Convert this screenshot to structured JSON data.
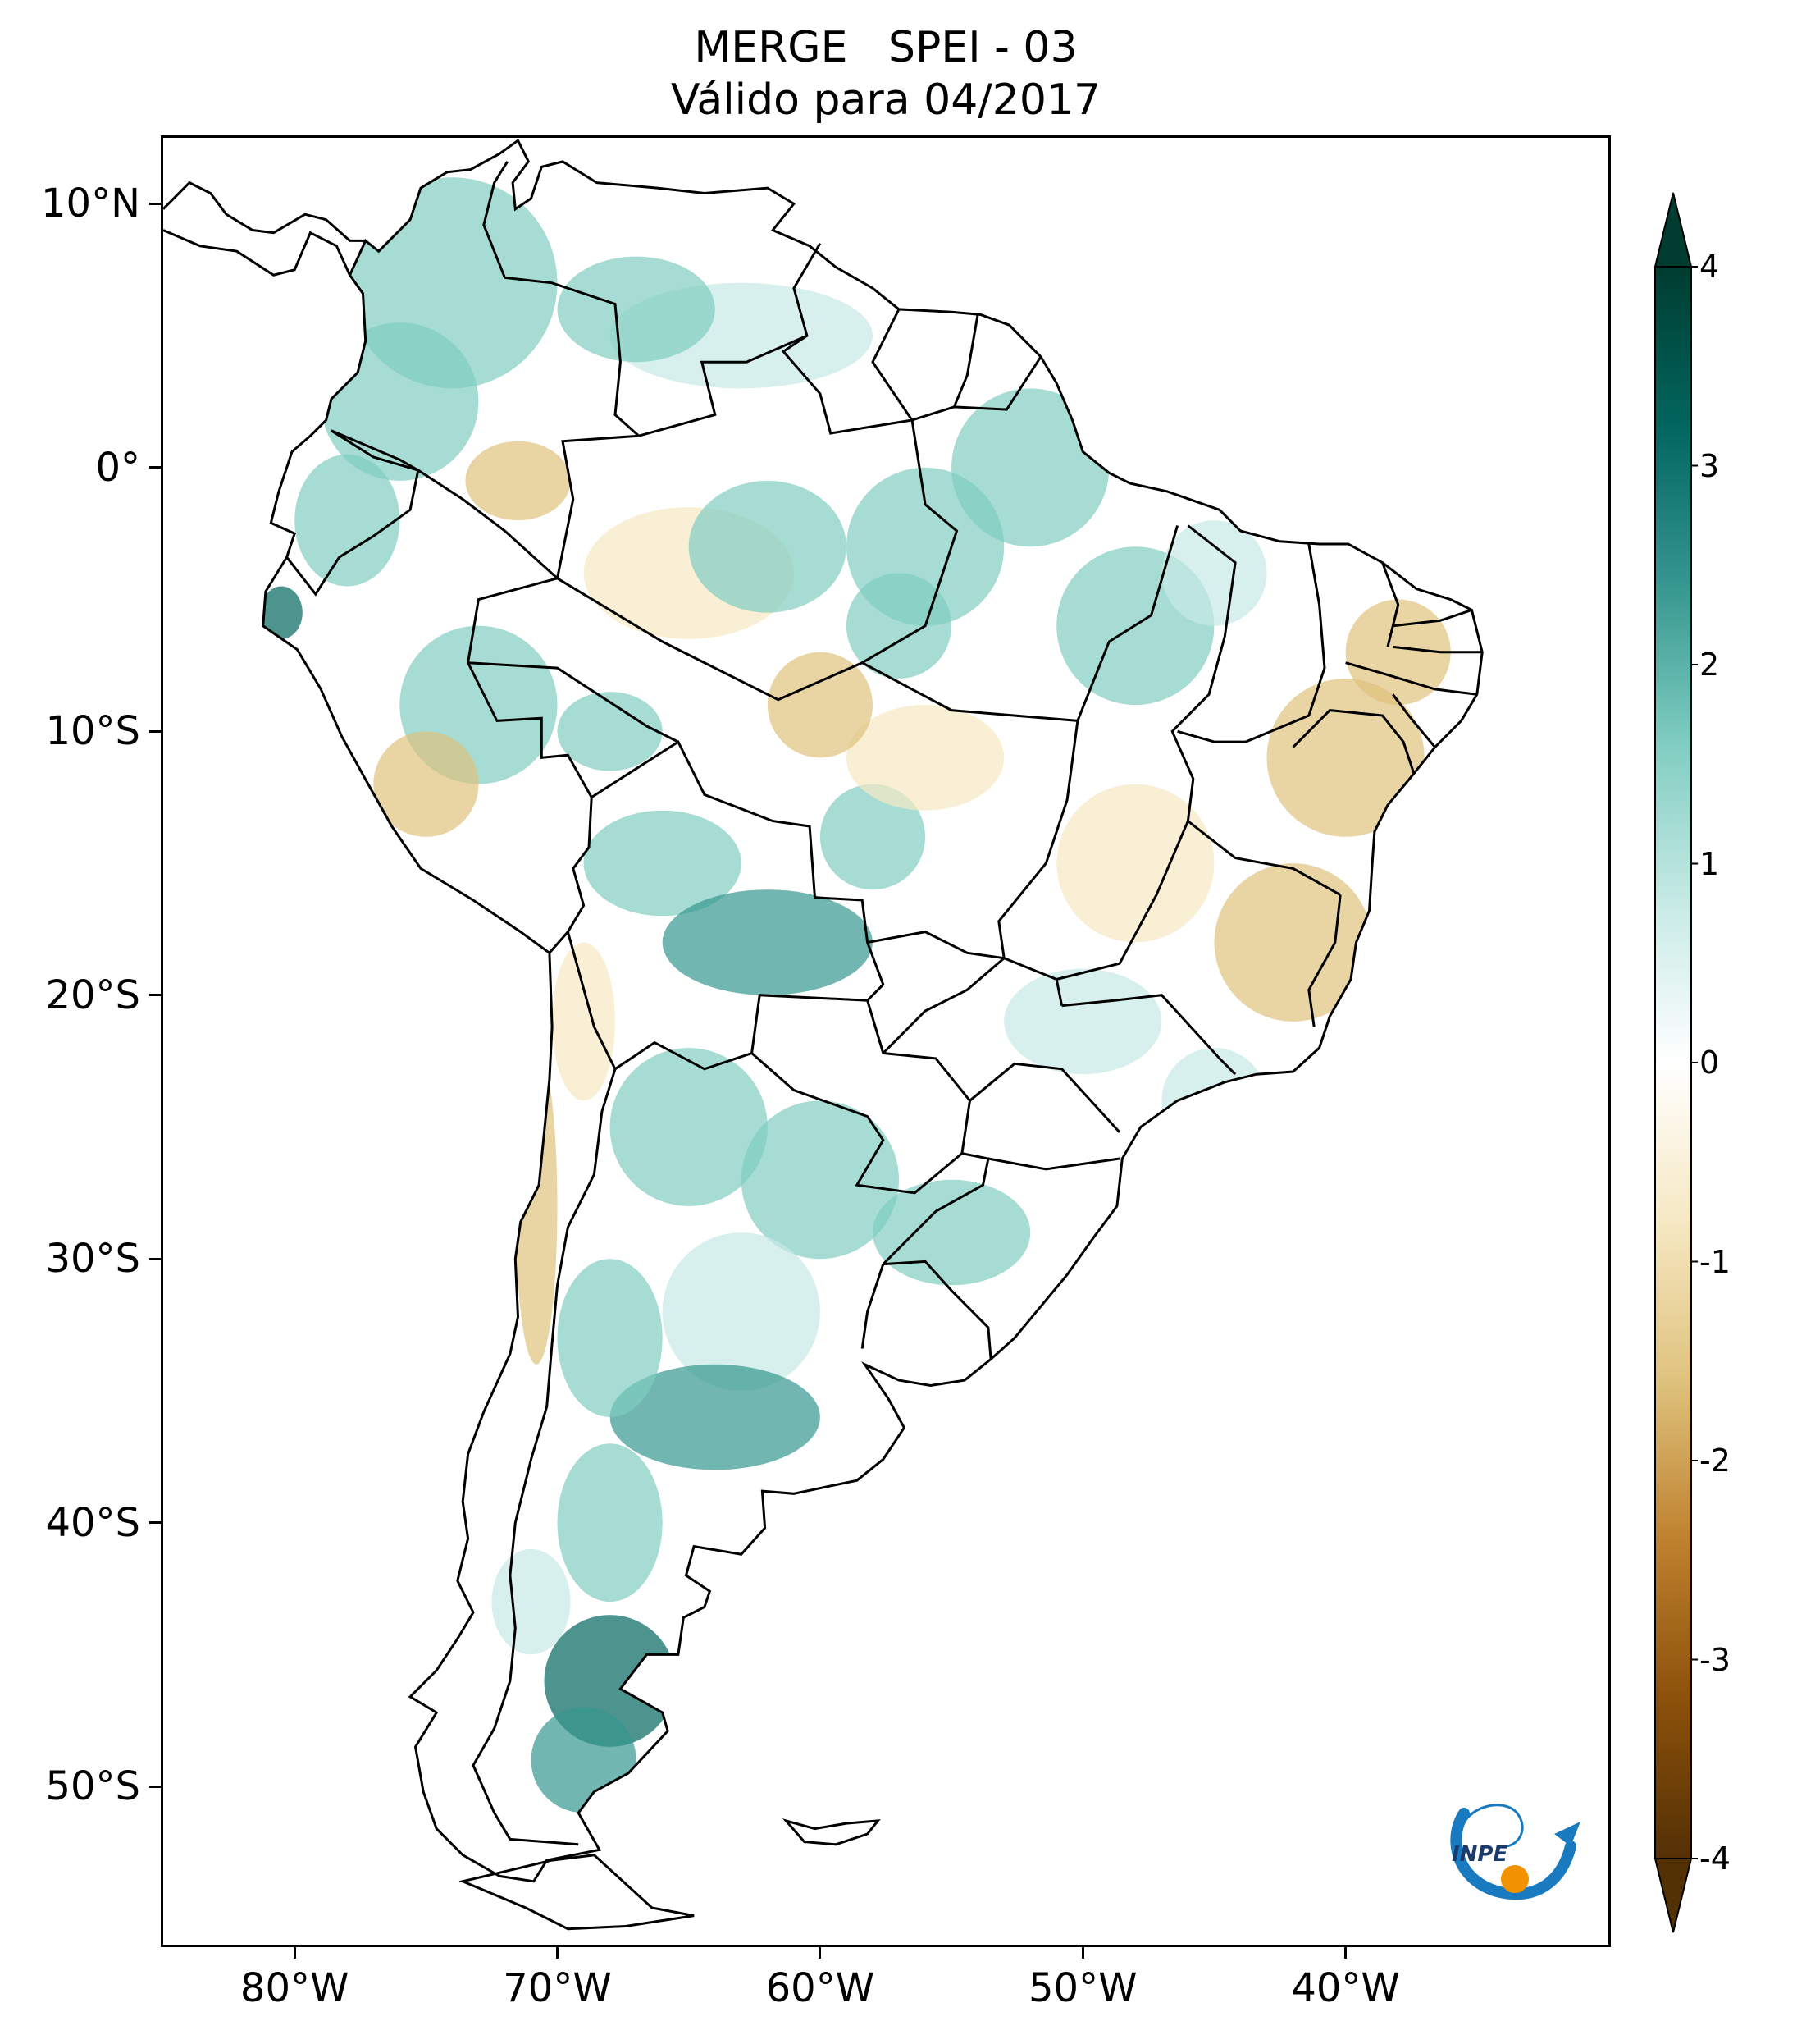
{
  "title": {
    "line1": "MERGE   SPEI - 03",
    "line2": "Válido para 04/2017"
  },
  "map": {
    "region": "South America",
    "lon_range": [
      -85,
      -30
    ],
    "lat_range": [
      -56,
      12.5
    ],
    "lat_ticks": [
      {
        "value": 10,
        "label": "10°N"
      },
      {
        "value": 0,
        "label": "0°"
      },
      {
        "value": -10,
        "label": "10°S"
      },
      {
        "value": -20,
        "label": "20°S"
      },
      {
        "value": -30,
        "label": "30°S"
      },
      {
        "value": -40,
        "label": "40°S"
      },
      {
        "value": -50,
        "label": "50°S"
      }
    ],
    "lon_ticks": [
      {
        "value": -80,
        "label": "80°W"
      },
      {
        "value": -70,
        "label": "70°W"
      },
      {
        "value": -60,
        "label": "60°W"
      },
      {
        "value": -50,
        "label": "50°W"
      },
      {
        "value": -40,
        "label": "40°W"
      }
    ],
    "wet_color": "#01665e",
    "dry_color": "#8c510a",
    "border_color": "#000000"
  },
  "colorbar": {
    "range": [
      -4,
      4
    ],
    "ticks": [
      {
        "value": 4,
        "label": "4"
      },
      {
        "value": 3,
        "label": "3"
      },
      {
        "value": 2,
        "label": "2"
      },
      {
        "value": 1,
        "label": "1"
      },
      {
        "value": 0,
        "label": "0"
      },
      {
        "value": -1,
        "label": "-1"
      },
      {
        "value": -2,
        "label": "-2"
      },
      {
        "value": -3,
        "label": "-3"
      },
      {
        "value": -4,
        "label": "-4"
      }
    ],
    "colors": [
      "#003c30",
      "#01665e",
      "#35978f",
      "#80cdc1",
      "#c7eae5",
      "#ffffff",
      "#f6e8c3",
      "#dfc27d",
      "#bf812d",
      "#8c510a",
      "#543005"
    ],
    "extend": "both"
  },
  "logo": {
    "text": "INPE",
    "icon": "inpe-logo-icon",
    "colors": [
      "#1a7abf",
      "#f39200"
    ]
  }
}
